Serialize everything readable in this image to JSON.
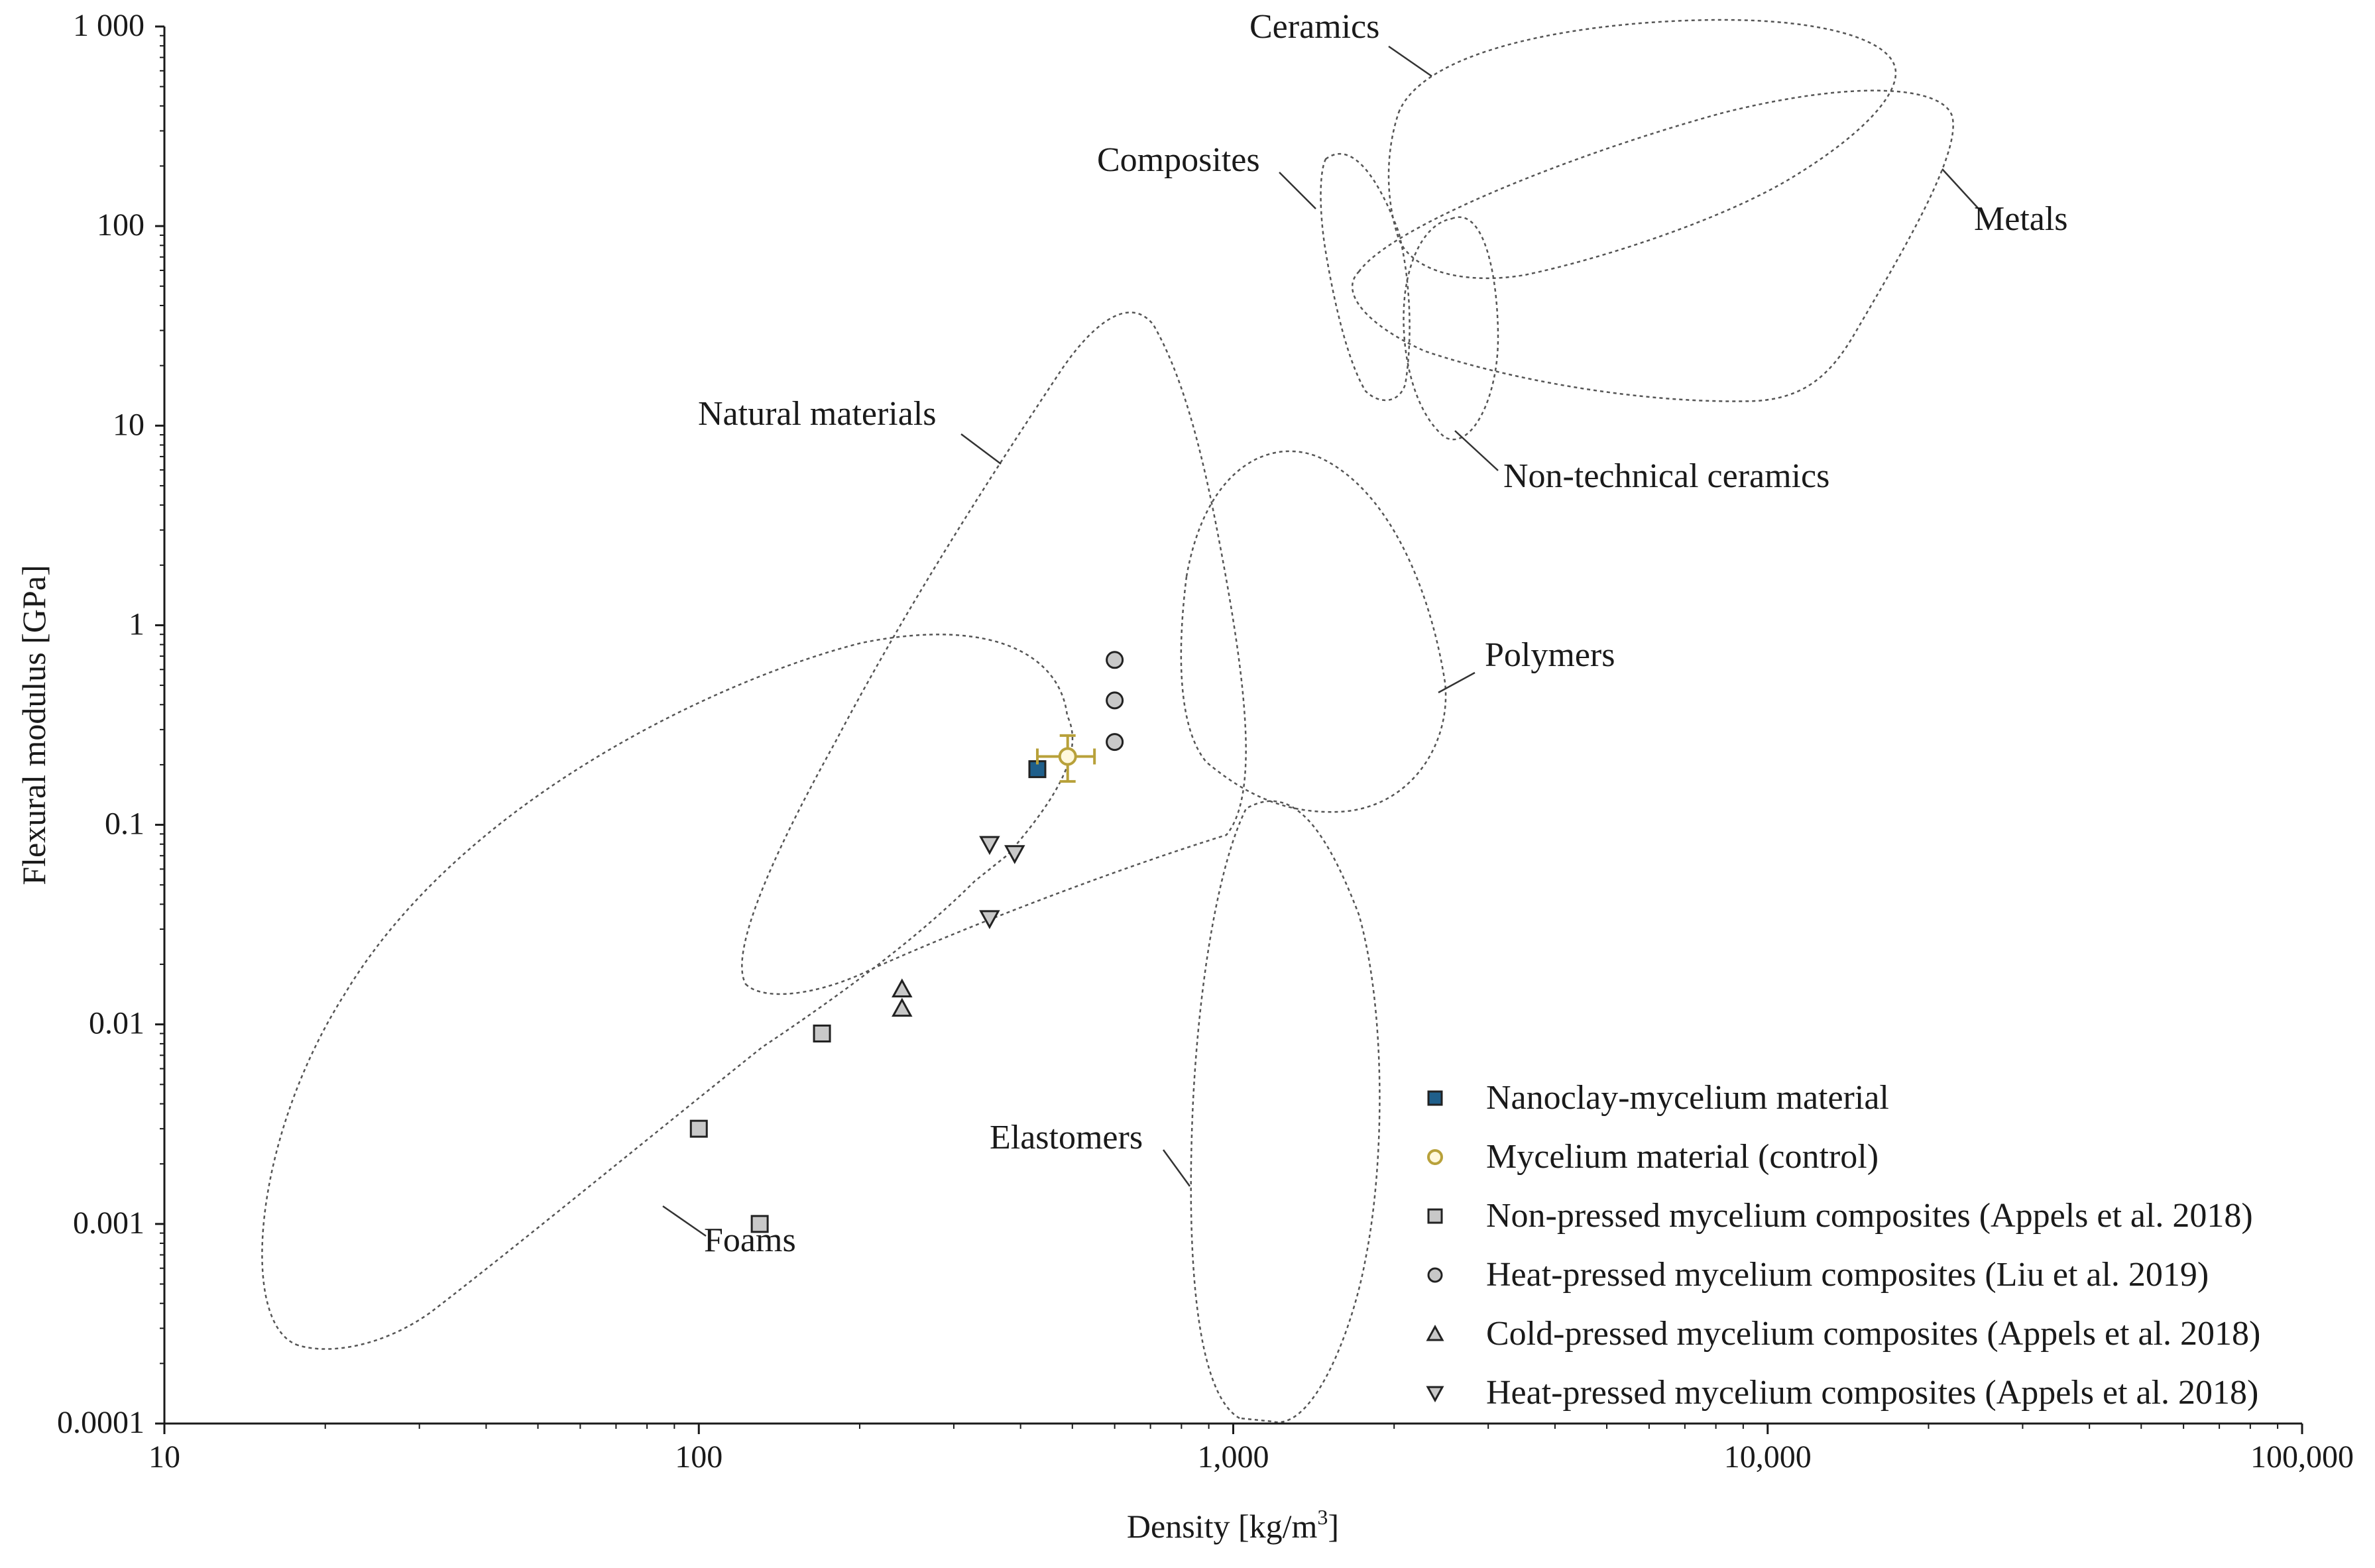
{
  "chart_data": {
    "type": "scatter",
    "xlabel": "Density [kg/m",
    "xlabel_sup": "3",
    "xlabel_suffix": "]",
    "ylabel": "Flexural modulus [GPa]",
    "x_scale": "log",
    "y_scale": "log",
    "xlim": [
      10,
      100000
    ],
    "ylim": [
      0.0001,
      1000
    ],
    "x_ticks": [
      {
        "value": 10,
        "label": "10"
      },
      {
        "value": 100,
        "label": "100"
      },
      {
        "value": 1000,
        "label": "1,000"
      },
      {
        "value": 10000,
        "label": "10,000"
      },
      {
        "value": 100000,
        "label": "100,000"
      }
    ],
    "y_ticks": [
      {
        "value": 0.0001,
        "label": "0.0001"
      },
      {
        "value": 0.001,
        "label": "0.001"
      },
      {
        "value": 0.01,
        "label": "0.01"
      },
      {
        "value": 0.1,
        "label": "0.1"
      },
      {
        "value": 1,
        "label": "1"
      },
      {
        "value": 10,
        "label": "10"
      },
      {
        "value": 100,
        "label": "100"
      },
      {
        "value": 1000,
        "label": "1 000"
      }
    ],
    "series": [
      {
        "name": "Nanoclay-mycelium material",
        "marker": "square",
        "color": "#1f5f8b",
        "points": [
          {
            "x": 430,
            "y": 0.19
          }
        ]
      },
      {
        "name": "Mycelium material (control)",
        "marker": "circle-open",
        "color": "#b8a13a",
        "points": [
          {
            "x": 490,
            "y": 0.22,
            "x_err": 60,
            "y_err_low": 0.055,
            "y_err_high": 0.06
          }
        ]
      },
      {
        "name": "Non-pressed mycelium composites (Appels et al. 2018)",
        "marker": "square",
        "color": "#c8c8c8",
        "points": [
          {
            "x": 100,
            "y": 0.003
          },
          {
            "x": 130,
            "y": 0.001
          },
          {
            "x": 170,
            "y": 0.009
          }
        ]
      },
      {
        "name": "Heat-pressed mycelium composites (Liu et al. 2019)",
        "marker": "circle",
        "color": "#c8c8c8",
        "points": [
          {
            "x": 600,
            "y": 0.67
          },
          {
            "x": 600,
            "y": 0.42
          },
          {
            "x": 600,
            "y": 0.26
          }
        ]
      },
      {
        "name": "Cold-pressed mycelium composites (Appels et al. 2018)",
        "marker": "triangle-up",
        "color": "#c8c8c8",
        "points": [
          {
            "x": 240,
            "y": 0.015
          },
          {
            "x": 240,
            "y": 0.012
          }
        ]
      },
      {
        "name": "Heat-pressed mycelium composites (Appels et al. 2018)",
        "marker": "triangle-down",
        "color": "#c8c8c8",
        "points": [
          {
            "x": 350,
            "y": 0.08
          },
          {
            "x": 390,
            "y": 0.072
          },
          {
            "x": 350,
            "y": 0.034
          }
        ]
      }
    ],
    "regions": [
      {
        "name": "Ceramics"
      },
      {
        "name": "Composites"
      },
      {
        "name": "Metals"
      },
      {
        "name": "Natural materials"
      },
      {
        "name": "Non-technical ceramics"
      },
      {
        "name": "Polymers"
      },
      {
        "name": "Elastomers"
      },
      {
        "name": "Foams"
      }
    ],
    "legend_position": "bottom-right"
  }
}
